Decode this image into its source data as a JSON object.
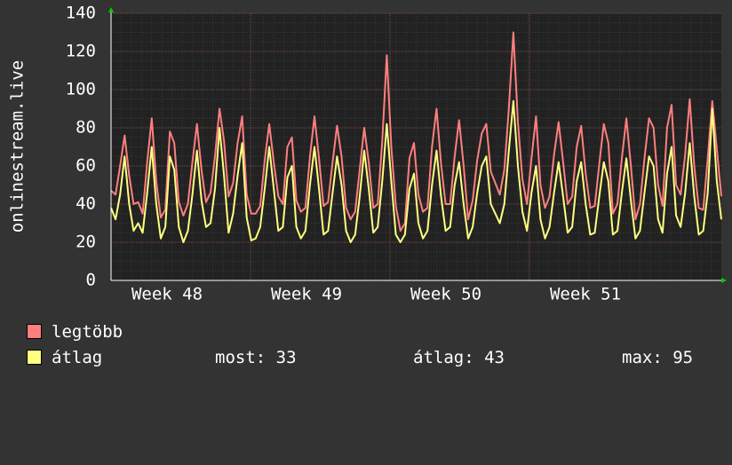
{
  "chart_data": {
    "type": "line",
    "ylabel": "onlinestream.live",
    "ylim": [
      0,
      140
    ],
    "y_ticks": [
      0,
      20,
      40,
      60,
      80,
      100,
      120,
      140
    ],
    "x_tick_labels": [
      "Week 48",
      "Week 49",
      "Week 50",
      "Week 51"
    ],
    "grid": true,
    "series": [
      {
        "name": "legtöbb",
        "color": "#ff7f7f",
        "values": [
          47,
          45,
          60,
          76,
          55,
          40,
          41,
          35,
          62,
          85,
          52,
          33,
          37,
          78,
          72,
          41,
          34,
          40,
          62,
          82,
          58,
          41,
          46,
          65,
          90,
          73,
          44,
          51,
          72,
          86,
          45,
          35,
          35,
          39,
          63,
          82,
          62,
          44,
          40,
          70,
          75,
          42,
          36,
          38,
          65,
          86,
          64,
          39,
          41,
          62,
          81,
          65,
          38,
          32,
          36,
          58,
          80,
          62,
          38,
          40,
          73,
          118,
          70,
          39,
          26,
          30,
          64,
          72,
          45,
          36,
          38,
          70,
          90,
          61,
          40,
          40,
          65,
          84,
          60,
          32,
          42,
          63,
          77,
          82,
          57,
          51,
          45,
          58,
          90,
          130,
          83,
          53,
          40,
          64,
          86,
          50,
          38,
          44,
          66,
          83,
          62,
          40,
          44,
          70,
          81,
          56,
          38,
          39,
          61,
          82,
          72,
          35,
          40,
          64,
          85,
          60,
          32,
          40,
          64,
          85,
          80,
          50,
          39,
          80,
          92,
          50,
          45,
          66,
          95,
          60,
          38,
          37,
          64,
          94,
          69,
          44
        ]
      },
      {
        "name": "átlag",
        "color": "#ffff80",
        "values": [
          38,
          32,
          45,
          65,
          40,
          26,
          30,
          25,
          46,
          70,
          40,
          22,
          28,
          65,
          58,
          28,
          20,
          26,
          45,
          68,
          42,
          28,
          30,
          48,
          80,
          55,
          25,
          35,
          55,
          72,
          33,
          21,
          22,
          28,
          48,
          70,
          48,
          26,
          28,
          54,
          60,
          28,
          22,
          26,
          50,
          70,
          48,
          24,
          26,
          46,
          65,
          50,
          26,
          20,
          24,
          44,
          68,
          48,
          25,
          28,
          52,
          82,
          52,
          24,
          20,
          24,
          48,
          56,
          30,
          22,
          26,
          50,
          68,
          44,
          26,
          28,
          50,
          62,
          40,
          22,
          28,
          46,
          60,
          65,
          40,
          35,
          30,
          40,
          68,
          94,
          60,
          36,
          26,
          46,
          60,
          32,
          22,
          28,
          46,
          62,
          44,
          25,
          28,
          52,
          62,
          40,
          24,
          25,
          44,
          62,
          52,
          24,
          26,
          46,
          64,
          42,
          22,
          26,
          46,
          65,
          60,
          32,
          25,
          56,
          70,
          34,
          28,
          46,
          72,
          44,
          24,
          26,
          46,
          90,
          52,
          32
        ]
      }
    ],
    "legend_placement": "bottom-left"
  },
  "legend": {
    "max_series_label": "legtöbb",
    "avg_series_label": "átlag",
    "now_stat": "most: 33",
    "avg_stat": "átlag: 43",
    "max_stat": "max: 95"
  }
}
